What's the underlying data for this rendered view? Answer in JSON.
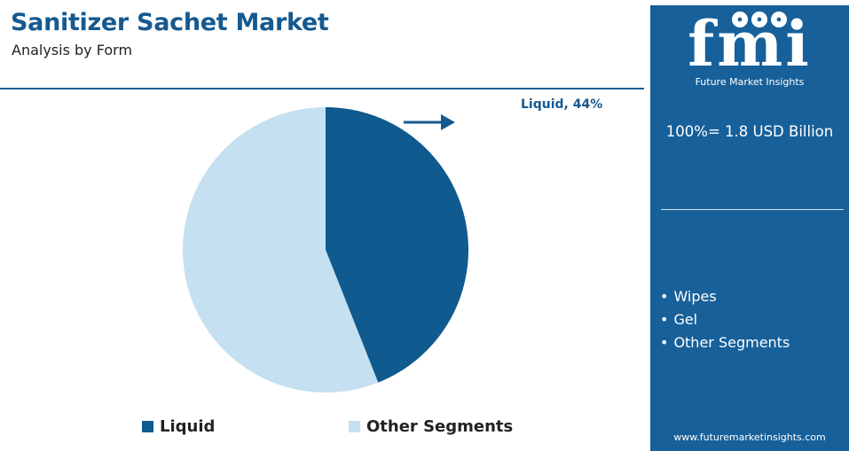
{
  "header": {
    "title": "Sanitizer Sachet Market",
    "subtitle": "Analysis by Form"
  },
  "callout": {
    "text": "Liquid, 44%"
  },
  "chart_data": {
    "type": "pie",
    "title": "Sanitizer Sachet Market",
    "subtitle": "Analysis by Form",
    "slices": [
      {
        "label": "Liquid",
        "value": 44,
        "color": "#0f5a8e"
      },
      {
        "label": "Other Segments",
        "value": 56,
        "color": "#c4e0f1"
      }
    ],
    "start_angle_deg": 0,
    "direction": "clockwise",
    "legend_position": "bottom",
    "data_labels": [
      {
        "label": "Liquid",
        "text": "Liquid, 44%"
      }
    ]
  },
  "legend": {
    "items": [
      {
        "label": "Liquid",
        "color": "#0f5a8e"
      },
      {
        "label": "Other Segments",
        "color": "#c4e0f1"
      }
    ]
  },
  "sidebar": {
    "brand": "fmi",
    "brand_subtitle": "Future Market Insights",
    "total": "100%= 1.8 USD Billion",
    "segments": [
      "Wipes",
      "Gel",
      "Other Segments"
    ],
    "website": "www.futuremarketinsights.com",
    "background_color": "#17609a"
  }
}
